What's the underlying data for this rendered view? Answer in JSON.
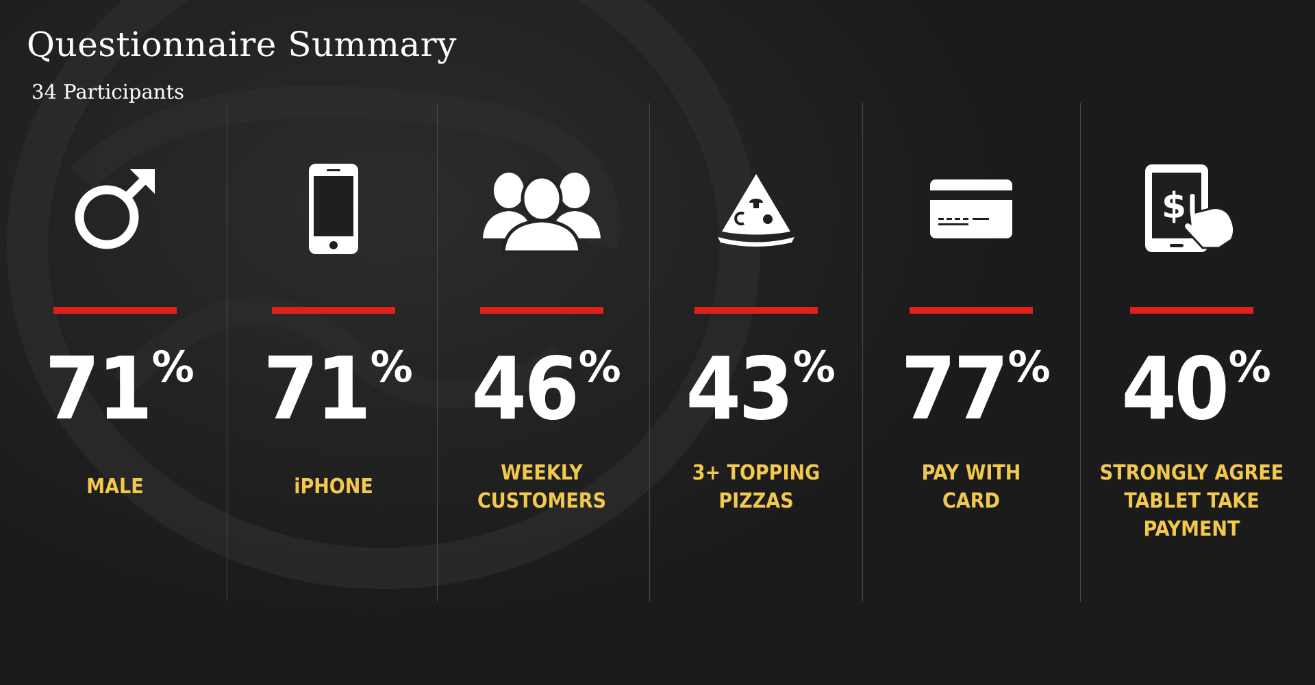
{
  "slide": {
    "title": "Questionnaire Summary",
    "subtitle": "34 Participants"
  },
  "colors": {
    "background": "#1b1b1b",
    "accent_bar": "#e0201a",
    "label_text": "#f2c94c",
    "value_text": "#ffffff",
    "divider": "#4a4a4a"
  },
  "stats": [
    {
      "icon": "male-symbol-icon",
      "value": "71",
      "unit": "%",
      "label": "MALE"
    },
    {
      "icon": "smartphone-icon",
      "value": "71",
      "unit": "%",
      "label": "iPHONE"
    },
    {
      "icon": "people-group-icon",
      "value": "46",
      "unit": "%",
      "label": "WEEKLY\nCUSTOMERS"
    },
    {
      "icon": "pizza-slice-icon",
      "value": "43",
      "unit": "%",
      "label": "3+ TOPPING\nPIZZAS"
    },
    {
      "icon": "credit-card-icon",
      "value": "77",
      "unit": "%",
      "label": "PAY WITH\nCARD"
    },
    {
      "icon": "tablet-payment-icon",
      "value": "40",
      "unit": "%",
      "label": "STRONGLY AGREE\nTABLET TAKE\nPAYMENT"
    }
  ]
}
